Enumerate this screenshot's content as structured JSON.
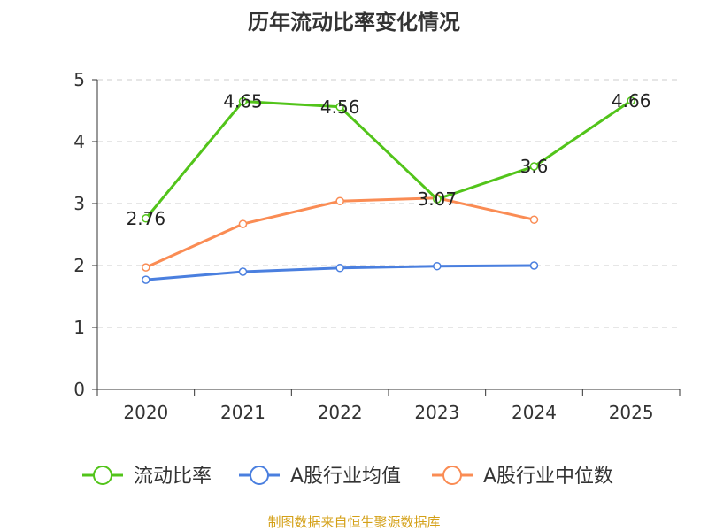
{
  "chart_data": {
    "type": "line",
    "title": "历年流动比率变化情况",
    "categories": [
      "2020",
      "2021",
      "2022",
      "2023",
      "2024",
      "2025"
    ],
    "ylim": [
      0,
      5
    ],
    "yticks": [
      0,
      1,
      2,
      3,
      4,
      5
    ],
    "grid": true,
    "legend_position": "bottom",
    "series": [
      {
        "name": "流动比率",
        "color": "#52c41a",
        "values": [
          2.76,
          4.65,
          4.56,
          3.07,
          3.6,
          4.66
        ],
        "labels": [
          "2.76",
          "4.65",
          "4.56",
          "3.07",
          "3.6",
          "4.66"
        ]
      },
      {
        "name": "A股行业均值",
        "color": "#4a7fdf",
        "values": [
          1.77,
          1.9,
          1.96,
          1.99,
          2.0,
          null
        ]
      },
      {
        "name": "A股行业中位数",
        "color": "#fa8c54",
        "values": [
          1.97,
          2.67,
          3.04,
          3.09,
          2.74,
          null
        ]
      }
    ],
    "source": "制图数据来自恒生聚源数据库"
  }
}
